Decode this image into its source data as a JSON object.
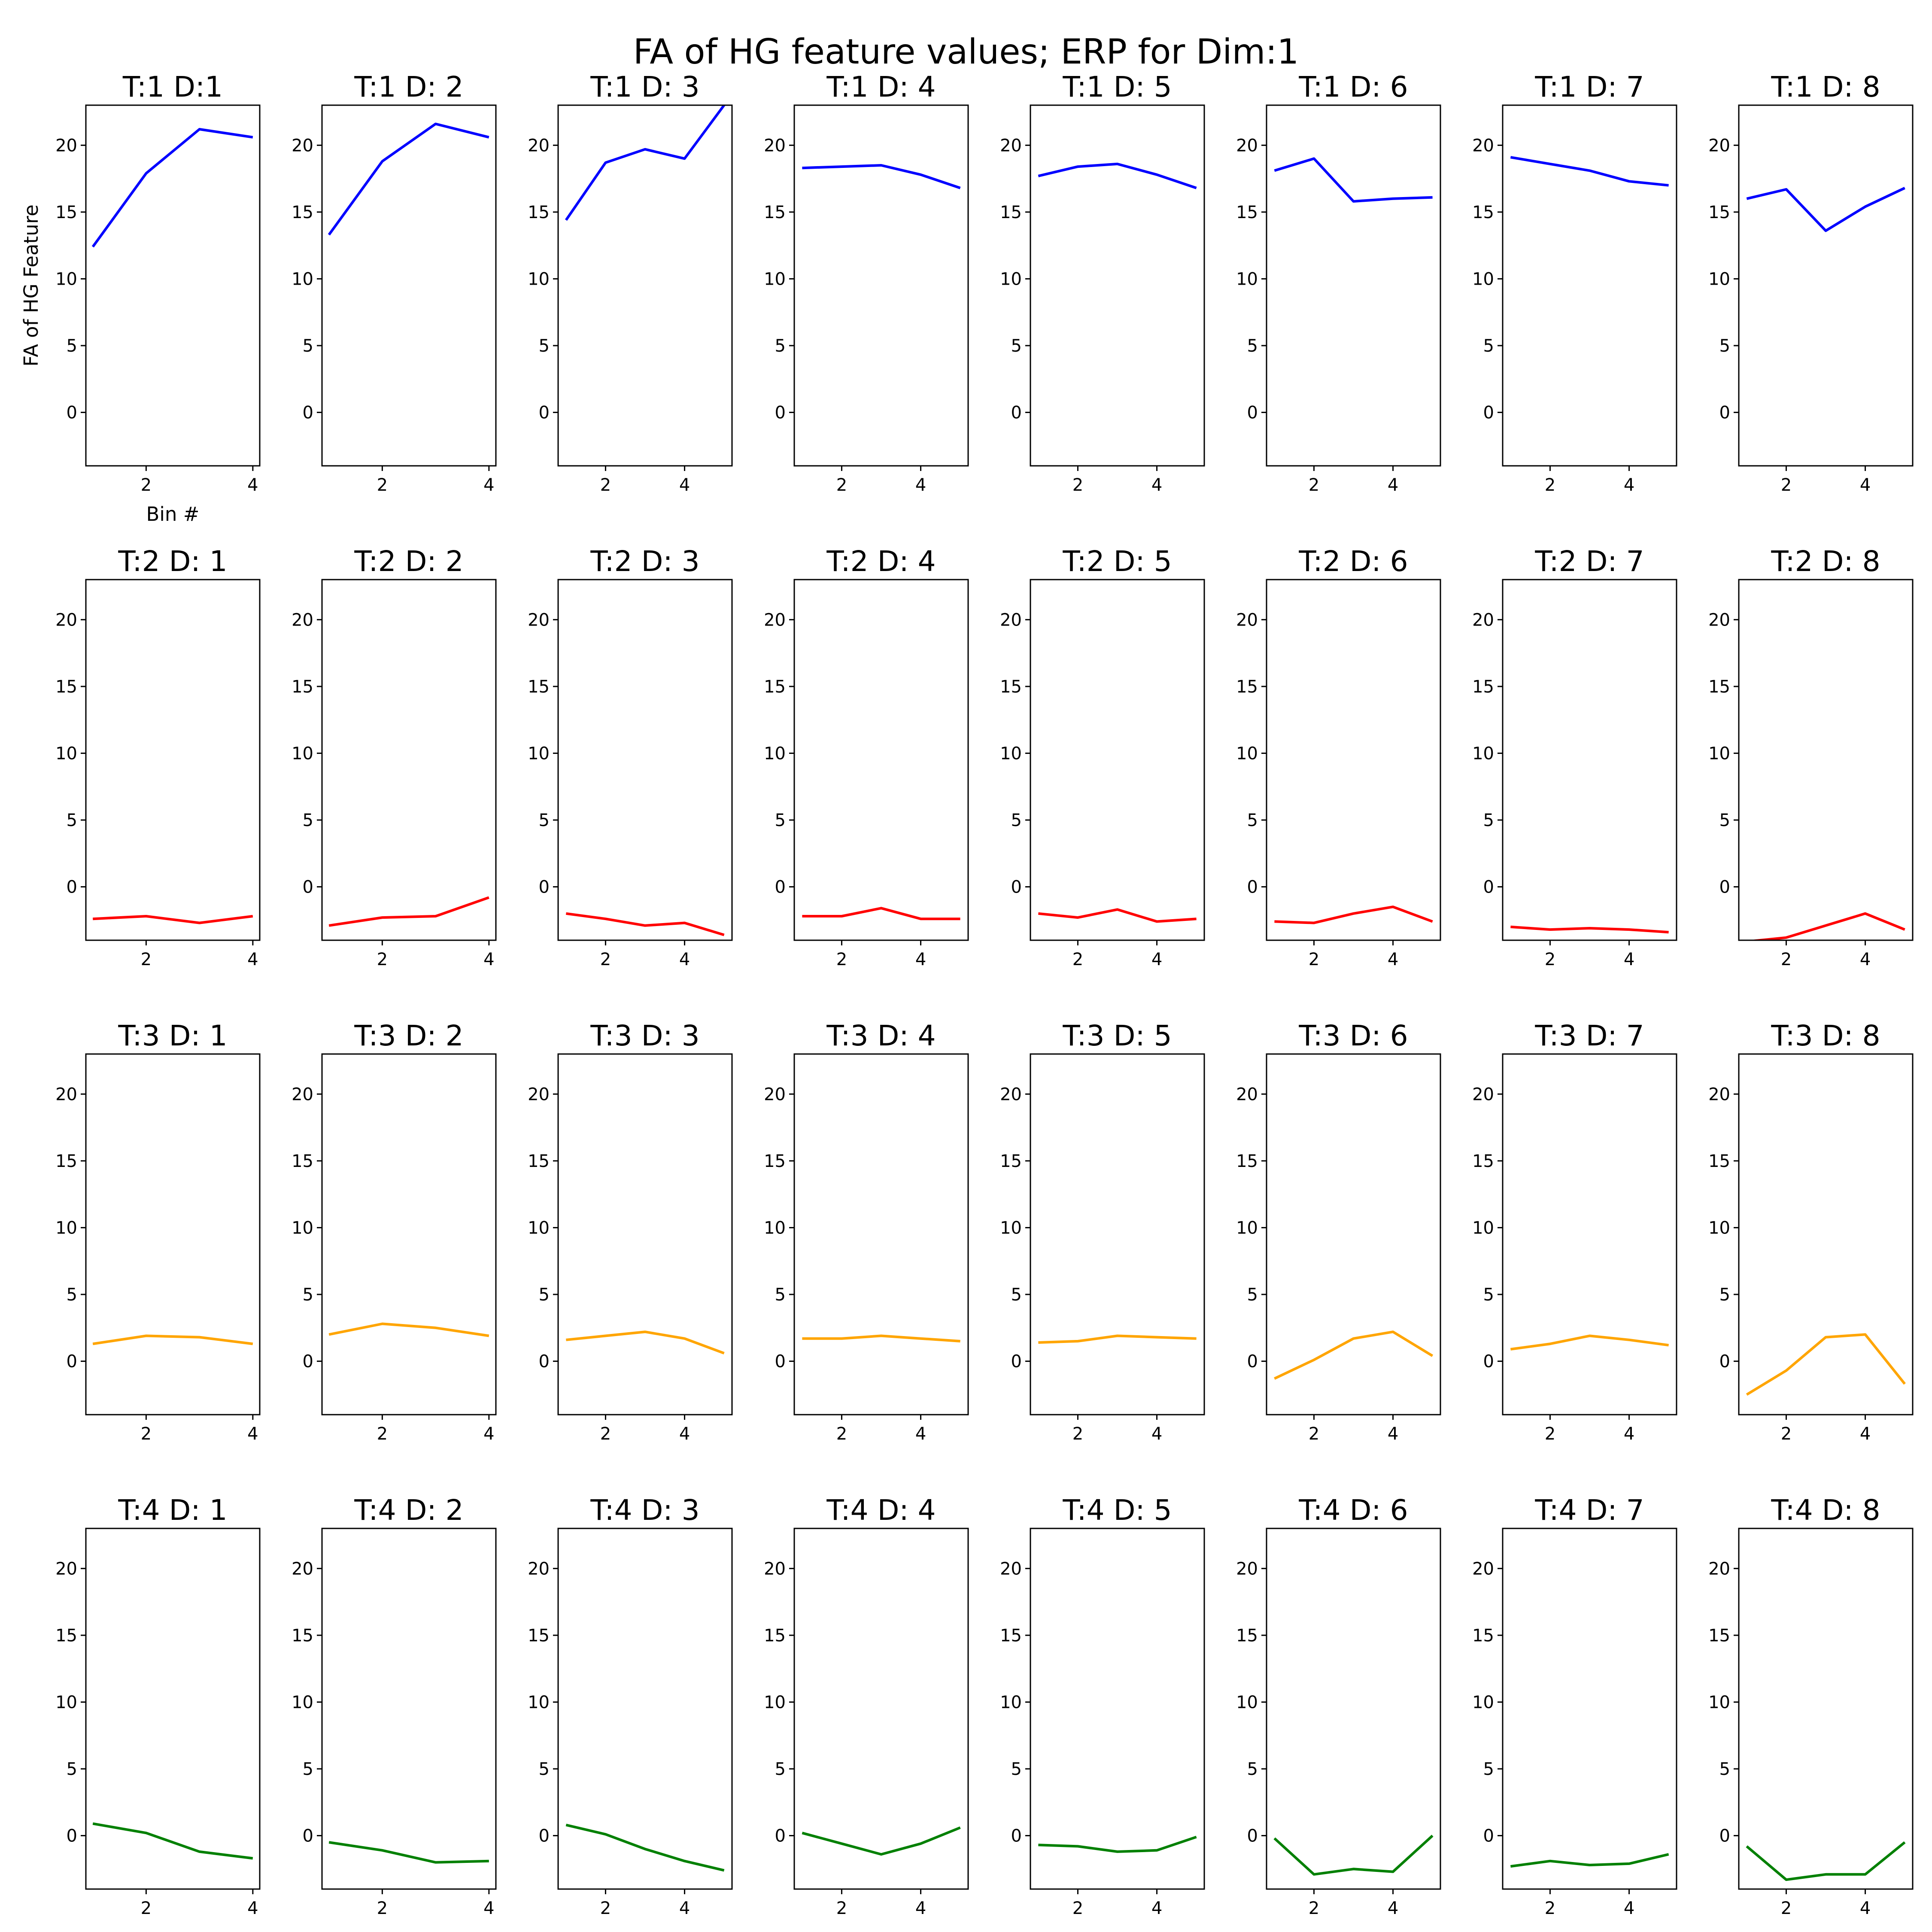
{
  "chart_data": {
    "type": "line",
    "title": "FA of HG feature values; ERP for Dim:1",
    "ylabel": "FA of HG Feature",
    "xlabel": "Bin #",
    "ylim": [
      -4,
      23
    ],
    "yticks": [
      0,
      5,
      10,
      15,
      20
    ],
    "xticks": [
      2,
      4
    ],
    "grid": false,
    "row_colors": [
      "#0000ff",
      "#ff0000",
      "#ffa500",
      "#008000"
    ],
    "panels": [
      {
        "title": "T:1  D:1",
        "x": [
          1,
          2,
          3,
          4
        ],
        "y": [
          12.4,
          17.9,
          21.2,
          20.6
        ]
      },
      {
        "title": "T:1  D: 2",
        "x": [
          1,
          2,
          3,
          4
        ],
        "y": [
          13.3,
          18.8,
          21.6,
          20.6
        ]
      },
      {
        "title": "T:1  D: 3",
        "x": [
          1,
          2,
          3,
          4,
          5
        ],
        "y": [
          14.4,
          18.7,
          19.7,
          19.0,
          23.0
        ]
      },
      {
        "title": "T:1  D: 4",
        "x": [
          1,
          2,
          3,
          4,
          5
        ],
        "y": [
          18.3,
          18.4,
          18.5,
          17.8,
          16.8
        ]
      },
      {
        "title": "T:1  D: 5",
        "x": [
          1,
          2,
          3,
          4,
          5
        ],
        "y": [
          17.7,
          18.4,
          18.6,
          17.8,
          16.8
        ]
      },
      {
        "title": "T:1  D: 6",
        "x": [
          1,
          2,
          3,
          4,
          5
        ],
        "y": [
          18.1,
          19.0,
          15.8,
          16.0,
          16.1
        ]
      },
      {
        "title": "T:1  D: 7",
        "x": [
          1,
          2,
          3,
          4,
          5
        ],
        "y": [
          19.1,
          18.6,
          18.1,
          17.3,
          17.0
        ]
      },
      {
        "title": "T:1  D: 8",
        "x": [
          1,
          2,
          3,
          4,
          5
        ],
        "y": [
          16.0,
          16.7,
          13.6,
          15.4,
          16.8
        ]
      },
      {
        "title": "T:2  D: 1",
        "x": [
          1,
          2,
          3,
          4
        ],
        "y": [
          -2.4,
          -2.2,
          -2.7,
          -2.2
        ]
      },
      {
        "title": "T:2  D: 2",
        "x": [
          1,
          2,
          3,
          4
        ],
        "y": [
          -2.9,
          -2.3,
          -2.2,
          -0.8
        ]
      },
      {
        "title": "T:2  D: 3",
        "x": [
          1,
          2,
          3,
          4,
          5
        ],
        "y": [
          -2.0,
          -2.4,
          -2.9,
          -2.7,
          -3.6
        ]
      },
      {
        "title": "T:2  D: 4",
        "x": [
          1,
          2,
          3,
          4,
          5
        ],
        "y": [
          -2.2,
          -2.2,
          -1.6,
          -2.4,
          -2.4
        ]
      },
      {
        "title": "T:2  D: 5",
        "x": [
          1,
          2,
          3,
          4,
          5
        ],
        "y": [
          -2.0,
          -2.3,
          -1.7,
          -2.6,
          -2.4
        ]
      },
      {
        "title": "T:2  D: 6",
        "x": [
          1,
          2,
          3,
          4,
          5
        ],
        "y": [
          -2.6,
          -2.7,
          -2.0,
          -1.5,
          -2.6
        ]
      },
      {
        "title": "T:2  D: 7",
        "x": [
          1,
          2,
          3,
          4,
          5
        ],
        "y": [
          -3.0,
          -3.2,
          -3.1,
          -3.2,
          -3.4
        ]
      },
      {
        "title": "T:2  D: 8",
        "x": [
          1,
          2,
          3,
          4,
          5
        ],
        "y": [
          -4.1,
          -3.8,
          -2.9,
          -2.0,
          -3.2
        ]
      },
      {
        "title": "T:3  D: 1",
        "x": [
          1,
          2,
          3,
          4
        ],
        "y": [
          1.3,
          1.9,
          1.8,
          1.3
        ]
      },
      {
        "title": "T:3  D: 2",
        "x": [
          1,
          2,
          3,
          4
        ],
        "y": [
          2.0,
          2.8,
          2.5,
          1.9
        ]
      },
      {
        "title": "T:3  D: 3",
        "x": [
          1,
          2,
          3,
          4,
          5
        ],
        "y": [
          1.6,
          1.9,
          2.2,
          1.7,
          0.6
        ]
      },
      {
        "title": "T:3  D: 4",
        "x": [
          1,
          2,
          3,
          4,
          5
        ],
        "y": [
          1.7,
          1.7,
          1.9,
          1.7,
          1.5
        ]
      },
      {
        "title": "T:3  D: 5",
        "x": [
          1,
          2,
          3,
          4,
          5
        ],
        "y": [
          1.4,
          1.5,
          1.9,
          1.8,
          1.7
        ]
      },
      {
        "title": "T:3  D: 6",
        "x": [
          1,
          2,
          3,
          4,
          5
        ],
        "y": [
          -1.3,
          0.1,
          1.7,
          2.2,
          0.4
        ]
      },
      {
        "title": "T:3  D: 7",
        "x": [
          1,
          2,
          3,
          4,
          5
        ],
        "y": [
          0.9,
          1.3,
          1.9,
          1.6,
          1.2
        ]
      },
      {
        "title": "T:3  D: 8",
        "x": [
          1,
          2,
          3,
          4,
          5
        ],
        "y": [
          -2.5,
          -0.7,
          1.8,
          2.0,
          -1.7
        ]
      },
      {
        "title": "T:4  D: 1",
        "x": [
          1,
          2,
          3,
          4
        ],
        "y": [
          0.9,
          0.2,
          -1.2,
          -1.7
        ]
      },
      {
        "title": "T:4  D: 2",
        "x": [
          1,
          2,
          3,
          4
        ],
        "y": [
          -0.5,
          -1.1,
          -2.0,
          -1.9
        ]
      },
      {
        "title": "T:4  D: 3",
        "x": [
          1,
          2,
          3,
          4,
          5
        ],
        "y": [
          0.8,
          0.1,
          -1.0,
          -1.9,
          -2.6
        ]
      },
      {
        "title": "T:4  D: 4",
        "x": [
          1,
          2,
          3,
          4,
          5
        ],
        "y": [
          0.2,
          -0.6,
          -1.4,
          -0.6,
          0.6
        ]
      },
      {
        "title": "T:4  D: 5",
        "x": [
          1,
          2,
          3,
          4,
          5
        ],
        "y": [
          -0.7,
          -0.8,
          -1.2,
          -1.1,
          -0.1
        ]
      },
      {
        "title": "T:4  D: 6",
        "x": [
          1,
          2,
          3,
          4,
          5
        ],
        "y": [
          -0.2,
          -2.9,
          -2.5,
          -2.7,
          0.0
        ]
      },
      {
        "title": "T:4  D: 7",
        "x": [
          1,
          2,
          3,
          4,
          5
        ],
        "y": [
          -2.3,
          -1.9,
          -2.2,
          -2.1,
          -1.4
        ]
      },
      {
        "title": "T:4  D: 8",
        "x": [
          1,
          2,
          3,
          4,
          5
        ],
        "y": [
          -0.8,
          -3.3,
          -2.9,
          -2.9,
          -0.5
        ]
      }
    ]
  }
}
